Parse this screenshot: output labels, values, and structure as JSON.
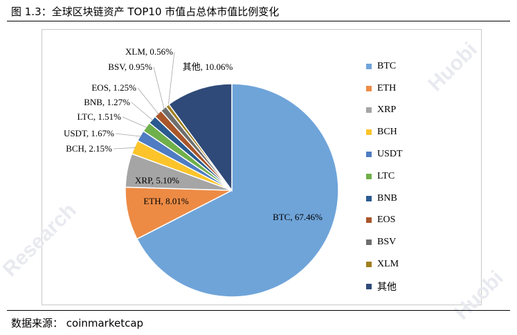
{
  "caption": "图 1.3：全球区块链资产 TOP10 市值占总体市值比例变化",
  "source": "数据来源： coinmarketcap",
  "watermarks": [
    "Huobi",
    "Research",
    "Research",
    "Huobi"
  ],
  "chart_data": {
    "type": "pie",
    "title": "",
    "slices": [
      {
        "name": "BTC",
        "value": 67.46,
        "label": "BTC, 67.46%",
        "color": "#6fa4d9"
      },
      {
        "name": "ETH",
        "value": 8.01,
        "label": "ETH, 8.01%",
        "color": "#ed8b45"
      },
      {
        "name": "XRP",
        "value": 5.1,
        "label": "XRP, 5.10%",
        "color": "#a5a5a5"
      },
      {
        "name": "BCH",
        "value": 2.15,
        "label": "BCH, 2.15%",
        "color": "#fcc42a"
      },
      {
        "name": "USDT",
        "value": 1.67,
        "label": "USDT, 1.67%",
        "color": "#4f7cc2"
      },
      {
        "name": "LTC",
        "value": 1.51,
        "label": "LTC, 1.51%",
        "color": "#6fb04a"
      },
      {
        "name": "BNB",
        "value": 1.27,
        "label": "BNB, 1.27%",
        "color": "#2a5a90"
      },
      {
        "name": "EOS",
        "value": 1.25,
        "label": "EOS, 1.25%",
        "color": "#a9562a"
      },
      {
        "name": "BSV",
        "value": 0.95,
        "label": "BSV, 0.95%",
        "color": "#6e6e6e"
      },
      {
        "name": "XLM",
        "value": 0.56,
        "label": "XLM, 0.56%",
        "color": "#a07f1f"
      },
      {
        "name": "其他",
        "value": 10.06,
        "label": "其他, 10.06%",
        "color": "#2f4a78"
      }
    ],
    "legend_position": "right"
  }
}
